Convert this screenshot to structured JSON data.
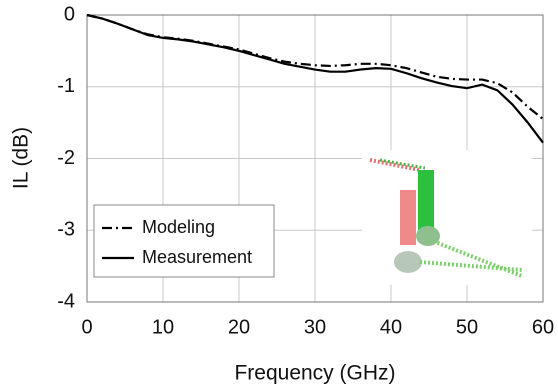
{
  "chart_data": {
    "type": "line",
    "x_label": "Frequency (GHz)",
    "y_label": "IL (dB)",
    "x": [
      0,
      2,
      4,
      6,
      8,
      10,
      12,
      14,
      16,
      18,
      20,
      22,
      24,
      26,
      28,
      30,
      32,
      34,
      36,
      38,
      40,
      42,
      44,
      46,
      48,
      50,
      52,
      54,
      56,
      58,
      60
    ],
    "series": [
      {
        "name": "Modeling",
        "color": "#000000",
        "dash": "dashdot",
        "values": [
          0,
          -0.05,
          -0.12,
          -0.2,
          -0.27,
          -0.31,
          -0.33,
          -0.36,
          -0.4,
          -0.44,
          -0.48,
          -0.54,
          -0.6,
          -0.65,
          -0.68,
          -0.7,
          -0.71,
          -0.7,
          -0.68,
          -0.68,
          -0.7,
          -0.74,
          -0.8,
          -0.86,
          -0.89,
          -0.9,
          -0.9,
          -0.95,
          -1.08,
          -1.28,
          -1.45
        ]
      },
      {
        "name": "Measurement",
        "color": "#000000",
        "dash": "solid",
        "values": [
          0,
          -0.05,
          -0.12,
          -0.2,
          -0.28,
          -0.32,
          -0.34,
          -0.37,
          -0.41,
          -0.45,
          -0.5,
          -0.56,
          -0.62,
          -0.68,
          -0.72,
          -0.76,
          -0.79,
          -0.79,
          -0.76,
          -0.74,
          -0.75,
          -0.81,
          -0.88,
          -0.94,
          -0.99,
          -1.02,
          -0.97,
          -1.05,
          -1.25,
          -1.5,
          -1.78
        ]
      }
    ],
    "xlim": [
      0,
      60
    ],
    "xticks": [
      0,
      10,
      20,
      30,
      40,
      50,
      60
    ],
    "ylim": [
      -4,
      0
    ],
    "yticks": [
      -4,
      -3,
      -2,
      -1,
      0
    ],
    "grid": true,
    "legend": "lower left"
  }
}
